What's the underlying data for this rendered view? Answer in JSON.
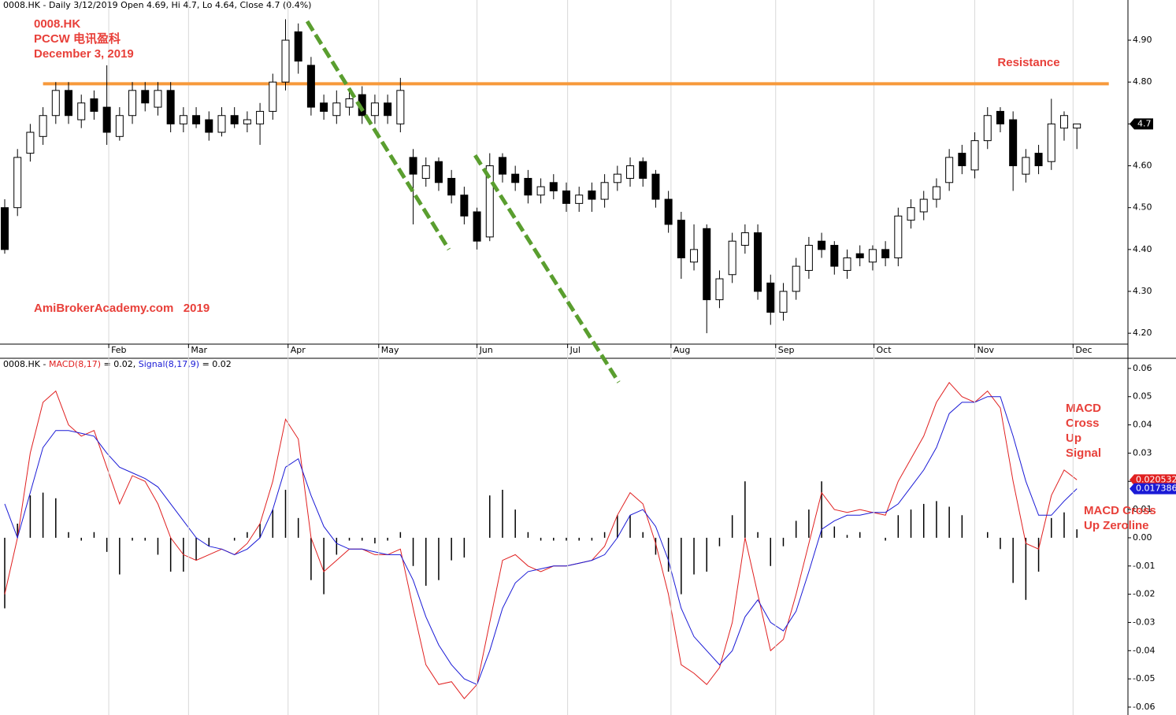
{
  "chart_data": [
    {
      "type": "candlestick",
      "title": "0008.HK - Daily 3/12/2019 Open 4.69, Hi 4.7, Lo 4.64, Close 4.7 (0.4%)",
      "open": [
        4.5,
        4.5,
        4.63,
        4.67,
        4.72,
        4.78,
        4.71,
        4.76,
        4.74,
        4.67,
        4.72,
        4.78,
        4.74,
        4.78,
        4.7,
        4.72,
        4.71,
        4.68,
        4.72,
        4.7,
        4.7,
        4.73,
        4.8,
        4.92,
        4.84,
        4.75,
        4.72,
        4.74,
        4.77,
        4.72,
        4.75,
        4.7,
        4.62,
        4.57,
        4.61,
        4.57,
        4.53,
        4.49,
        4.43,
        4.62,
        4.58,
        4.57,
        4.53,
        4.56,
        4.54,
        4.51,
        4.54,
        4.52,
        4.56,
        4.57,
        4.61,
        4.58,
        4.52,
        4.47,
        4.37,
        4.45,
        4.28,
        4.34,
        4.41,
        4.44,
        4.32,
        4.25,
        4.3,
        4.35,
        4.42,
        4.41,
        4.35,
        4.39,
        4.37,
        4.4,
        4.38,
        4.47,
        4.49,
        4.52,
        4.56,
        4.63,
        4.59,
        4.66,
        4.73,
        4.71,
        4.58,
        4.63,
        4.61,
        4.69,
        4.69
      ],
      "high": [
        4.52,
        4.64,
        4.7,
        4.74,
        4.8,
        4.8,
        4.77,
        4.78,
        4.84,
        4.74,
        4.8,
        4.8,
        4.8,
        4.8,
        4.74,
        4.74,
        4.73,
        4.74,
        4.74,
        4.73,
        4.75,
        4.82,
        4.95,
        4.94,
        4.86,
        4.77,
        4.78,
        4.78,
        4.79,
        4.77,
        4.77,
        4.81,
        4.64,
        4.62,
        4.62,
        4.59,
        4.55,
        4.5,
        4.63,
        4.63,
        4.6,
        4.59,
        4.57,
        4.58,
        4.56,
        4.55,
        4.56,
        4.58,
        4.6,
        4.62,
        4.62,
        4.59,
        4.54,
        4.49,
        4.46,
        4.46,
        4.35,
        4.44,
        4.46,
        4.46,
        4.34,
        4.32,
        4.38,
        4.43,
        4.44,
        4.42,
        4.4,
        4.41,
        4.41,
        4.42,
        4.5,
        4.52,
        4.54,
        4.57,
        4.64,
        4.65,
        4.68,
        4.74,
        4.74,
        4.73,
        4.64,
        4.65,
        4.76,
        4.73,
        4.7
      ],
      "low": [
        4.39,
        4.48,
        4.61,
        4.65,
        4.7,
        4.7,
        4.69,
        4.71,
        4.65,
        4.66,
        4.7,
        4.73,
        4.72,
        4.68,
        4.68,
        4.69,
        4.66,
        4.67,
        4.69,
        4.68,
        4.65,
        4.71,
        4.78,
        4.82,
        4.72,
        4.71,
        4.7,
        4.72,
        4.7,
        4.7,
        4.7,
        4.68,
        4.46,
        4.55,
        4.54,
        4.51,
        4.46,
        4.4,
        4.42,
        4.56,
        4.54,
        4.51,
        4.51,
        4.52,
        4.49,
        4.49,
        4.49,
        4.5,
        4.54,
        4.55,
        4.55,
        4.5,
        4.44,
        4.33,
        4.35,
        4.2,
        4.26,
        4.32,
        4.39,
        4.28,
        4.22,
        4.23,
        4.28,
        4.33,
        4.38,
        4.34,
        4.33,
        4.36,
        4.35,
        4.36,
        4.36,
        4.45,
        4.47,
        4.5,
        4.54,
        4.58,
        4.57,
        4.64,
        4.68,
        4.54,
        4.56,
        4.58,
        4.59,
        4.66,
        4.64
      ],
      "close": [
        4.4,
        4.62,
        4.68,
        4.72,
        4.78,
        4.72,
        4.75,
        4.73,
        4.68,
        4.72,
        4.78,
        4.75,
        4.78,
        4.7,
        4.72,
        4.7,
        4.68,
        4.72,
        4.7,
        4.71,
        4.73,
        4.8,
        4.9,
        4.85,
        4.74,
        4.73,
        4.75,
        4.76,
        4.72,
        4.75,
        4.72,
        4.78,
        4.58,
        4.6,
        4.56,
        4.53,
        4.48,
        4.42,
        4.6,
        4.58,
        4.56,
        4.53,
        4.55,
        4.54,
        4.51,
        4.53,
        4.52,
        4.56,
        4.58,
        4.6,
        4.57,
        4.52,
        4.46,
        4.38,
        4.4,
        4.28,
        4.33,
        4.42,
        4.44,
        4.3,
        4.25,
        4.3,
        4.36,
        4.41,
        4.4,
        4.36,
        4.38,
        4.38,
        4.4,
        4.38,
        4.48,
        4.5,
        4.52,
        4.55,
        4.62,
        4.6,
        4.66,
        4.72,
        4.7,
        4.6,
        4.62,
        4.6,
        4.7,
        4.72,
        4.7
      ],
      "last_value_label": "4.7",
      "xlim": [
        -0.37,
        88.0
      ],
      "xticks": [
        {
          "value": 8.15,
          "label": "Feb"
        },
        {
          "value": 14.4,
          "label": "Mar"
        },
        {
          "value": 22.2,
          "label": "Apr"
        },
        {
          "value": 29.3,
          "label": "May"
        },
        {
          "value": 37.0,
          "label": "Jun"
        },
        {
          "value": 44.1,
          "label": "Jul"
        },
        {
          "value": 52.2,
          "label": "Aug"
        },
        {
          "value": 60.4,
          "label": "Sep"
        },
        {
          "value": 68.1,
          "label": "Oct"
        },
        {
          "value": 76.0,
          "label": "Nov"
        },
        {
          "value": 83.7,
          "label": "Dec"
        }
      ],
      "ylim": [
        4.174,
        4.996
      ],
      "yticks": [
        {
          "value": 4.9,
          "label": "4.90"
        },
        {
          "value": 4.8,
          "label": "4.80"
        },
        {
          "value": 4.7,
          "label": "4.70"
        },
        {
          "value": 4.6,
          "label": "4.60"
        },
        {
          "value": 4.5,
          "label": "4.50"
        },
        {
          "value": 4.4,
          "label": "4.40"
        },
        {
          "value": 4.3,
          "label": "4.30"
        },
        {
          "value": 4.2,
          "label": "4.20"
        }
      ],
      "annotations": [
        {
          "lines": [
            "0008.HK",
            "PCCW 电讯盈科",
            "December 3, 2019"
          ]
        },
        {
          "lines": [
            "AmiBrokerAcademy.com   2019"
          ]
        }
      ],
      "resistance": {
        "label": "Resistance",
        "value": 4.796,
        "x": [
          3.0,
          86.5
        ],
        "color": "#f7993b"
      },
      "trendlines": [
        {
          "x": [
            23.7,
            34.8
          ],
          "y": [
            4.945,
            4.4
          ],
          "color": "#5a9e2f"
        },
        {
          "x": [
            36.85,
            48.1
          ],
          "y": [
            4.625,
            4.083
          ],
          "color": "#5a9e2f"
        }
      ]
    },
    {
      "type": "macd",
      "legend_prefix": "0008.HK -",
      "series": [
        {
          "name": "MACD(8,17)",
          "legend_value": "= 0.02,",
          "color": "#e02020",
          "last_label": "0.020532",
          "values": [
            -0.02,
            0.0,
            0.03,
            0.048,
            0.052,
            0.04,
            0.036,
            0.038,
            0.025,
            0.012,
            0.022,
            0.02,
            0.012,
            0.0,
            -0.006,
            -0.008,
            -0.006,
            -0.004,
            -0.006,
            -0.002,
            0.005,
            0.02,
            0.042,
            0.035,
            0.0,
            -0.012,
            -0.008,
            -0.004,
            -0.004,
            -0.006,
            -0.006,
            -0.004,
            -0.025,
            -0.045,
            -0.052,
            -0.051,
            -0.057,
            -0.052,
            -0.03,
            -0.008,
            -0.006,
            -0.01,
            -0.012,
            -0.01,
            -0.01,
            -0.009,
            -0.008,
            -0.003,
            0.008,
            0.016,
            0.012,
            -0.002,
            -0.02,
            -0.045,
            -0.048,
            -0.052,
            -0.046,
            -0.03,
            0.0,
            -0.02,
            -0.04,
            -0.036,
            -0.02,
            -0.002,
            0.016,
            0.01,
            0.009,
            0.01,
            0.009,
            0.008,
            0.02,
            0.028,
            0.036,
            0.048,
            0.055,
            0.05,
            0.048,
            0.052,
            0.046,
            0.02,
            -0.002,
            -0.004,
            0.015,
            0.024,
            0.020532
          ]
        },
        {
          "name": "Signal(8,17,9)",
          "legend_value": "= 0.02",
          "color": "#1a1ad6",
          "last_label": "0.017386",
          "values": [
            0.012,
            0.0,
            0.016,
            0.032,
            0.038,
            0.038,
            0.037,
            0.036,
            0.03,
            0.025,
            0.023,
            0.021,
            0.018,
            0.012,
            0.006,
            0.0,
            -0.003,
            -0.004,
            -0.006,
            -0.004,
            0.0,
            0.01,
            0.025,
            0.028,
            0.015,
            0.004,
            -0.002,
            -0.004,
            -0.004,
            -0.005,
            -0.006,
            -0.006,
            -0.015,
            -0.028,
            -0.038,
            -0.045,
            -0.05,
            -0.052,
            -0.04,
            -0.025,
            -0.016,
            -0.012,
            -0.011,
            -0.01,
            -0.01,
            -0.009,
            -0.008,
            -0.006,
            0.0,
            0.008,
            0.01,
            0.004,
            -0.008,
            -0.025,
            -0.035,
            -0.04,
            -0.045,
            -0.04,
            -0.028,
            -0.022,
            -0.03,
            -0.033,
            -0.026,
            -0.012,
            0.003,
            0.006,
            0.008,
            0.008,
            0.009,
            0.009,
            0.012,
            0.018,
            0.024,
            0.032,
            0.044,
            0.048,
            0.048,
            0.05,
            0.05,
            0.036,
            0.02,
            0.008,
            0.008,
            0.013,
            0.017386
          ]
        }
      ],
      "histogram": {
        "color": "#000000",
        "values": [
          -0.025,
          0.005,
          0.015,
          0.016,
          0.014,
          0.002,
          -0.001,
          0.002,
          -0.005,
          -0.013,
          -0.001,
          -0.001,
          -0.006,
          -0.012,
          -0.012,
          -0.008,
          -0.003,
          0.0,
          -0.001,
          0.002,
          0.005,
          0.01,
          0.017,
          0.007,
          -0.015,
          -0.02,
          -0.006,
          -0.001,
          -0.001,
          -0.002,
          -0.001,
          0.002,
          -0.01,
          -0.017,
          -0.015,
          -0.008,
          -0.007,
          0.0,
          0.015,
          0.017,
          0.01,
          0.002,
          -0.001,
          -0.001,
          -0.001,
          -0.001,
          -0.001,
          0.002,
          0.008,
          0.008,
          0.002,
          -0.006,
          -0.012,
          -0.02,
          -0.013,
          -0.012,
          -0.003,
          0.008,
          0.02,
          0.002,
          -0.01,
          -0.003,
          0.006,
          0.01,
          0.02,
          0.004,
          0.001,
          0.002,
          0.0,
          -0.001,
          0.008,
          0.01,
          0.012,
          0.013,
          0.011,
          0.008,
          0.0,
          0.002,
          -0.004,
          -0.016,
          -0.022,
          -0.012,
          0.007,
          0.009,
          0.003
        ]
      },
      "xlim": [
        -0.37,
        88.0
      ],
      "ylim": [
        -0.0628,
        0.0636
      ],
      "yticks": [
        0.06,
        0.05,
        0.04,
        0.03,
        0.02,
        0.01,
        {
          "value": 0,
          "label": "0.00"
        },
        -0.01,
        -0.02,
        -0.03,
        -0.04,
        -0.05,
        -0.06
      ],
      "annotations": [
        {
          "lines": [
            "MACD",
            "Cross",
            "Up",
            "Signal"
          ]
        },
        {
          "lines": [
            "MACD Cross",
            "Up Zeroline"
          ]
        }
      ]
    }
  ]
}
